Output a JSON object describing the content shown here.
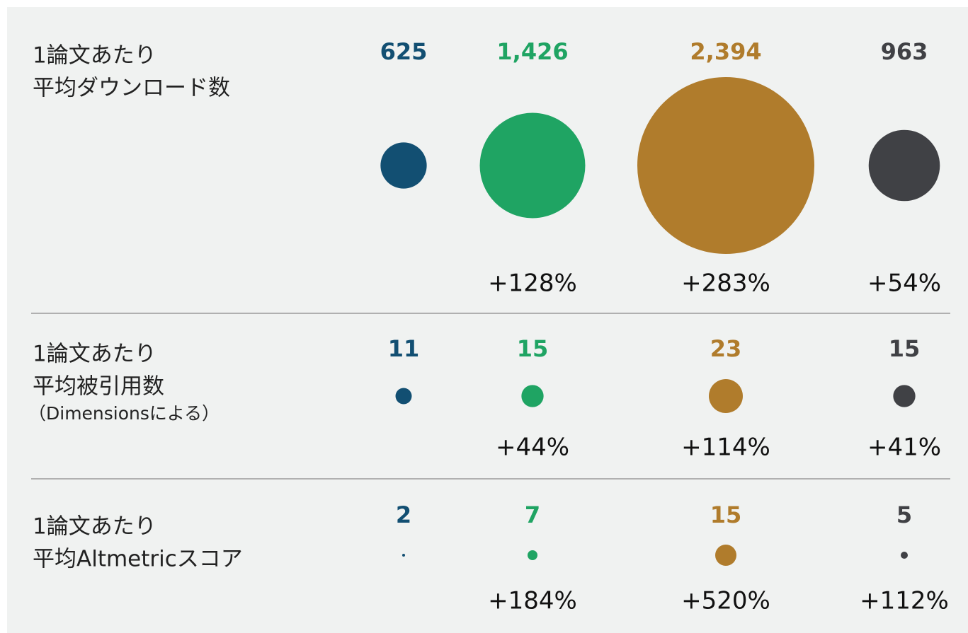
{
  "chart_data": {
    "type": "bubble",
    "colors": [
      "#124f72",
      "#1fa463",
      "#b07c2c",
      "#404145"
    ],
    "rows": [
      {
        "label": [
          "1論文あたり",
          "平均ダウンロード数"
        ],
        "values": [
          625,
          1426,
          2394,
          963
        ],
        "value_labels": [
          "625",
          "1,426",
          "2,394",
          "963"
        ],
        "changes": [
          null,
          128,
          283,
          54
        ],
        "change_labels": [
          null,
          "+128%",
          "+283%",
          "+54%"
        ]
      },
      {
        "label": [
          "1論文あたり",
          "平均被引用数",
          "（Dimensionsによる）"
        ],
        "values": [
          11,
          15,
          23,
          15
        ],
        "value_labels": [
          "11",
          "15",
          "23",
          "15"
        ],
        "changes": [
          null,
          44,
          114,
          41
        ],
        "change_labels": [
          null,
          "+44%",
          "+114%",
          "+41%"
        ]
      },
      {
        "label": [
          "1論文あたり",
          "平均Altmetricスコア"
        ],
        "values": [
          2,
          7,
          15,
          5
        ],
        "value_labels": [
          "2",
          "7",
          "15",
          "5"
        ],
        "changes": [
          null,
          184,
          520,
          112
        ],
        "change_labels": [
          null,
          "+184%",
          "+520%",
          "+112%"
        ]
      }
    ]
  }
}
